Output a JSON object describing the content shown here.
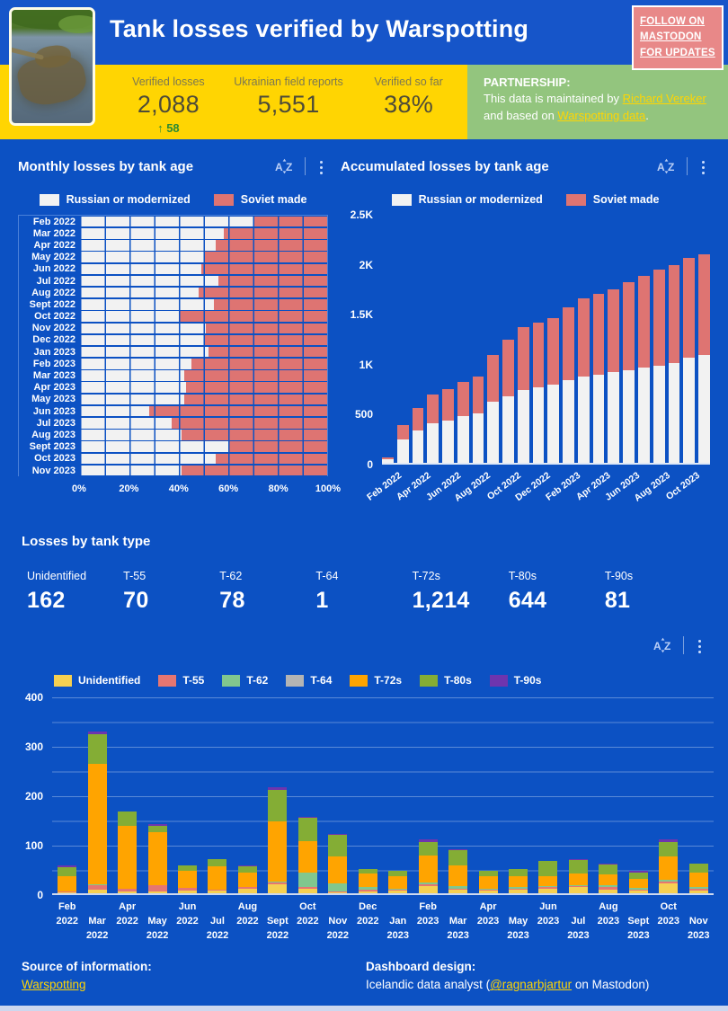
{
  "header": {
    "title": "Tank losses verified by Warspotting",
    "mastodon_button": {
      "lines": [
        "FOLLOW ON",
        "MASTODON",
        "FOR UPDATES"
      ]
    }
  },
  "stats": {
    "kpis": [
      {
        "label": "Verified losses",
        "value": "2,088",
        "delta_arrow": "↑",
        "delta": "58"
      },
      {
        "label": "Ukrainian field reports",
        "value": "5,551"
      },
      {
        "label": "Verified so far",
        "value": "38%"
      }
    ],
    "partnership": {
      "heading": "PARTNERSHIP:",
      "text_before": "This data is maintained by ",
      "link1": "Richard Vereker",
      "text_mid": " and based on ",
      "link2": "Warspotting data",
      "text_after": "."
    }
  },
  "tank_types": {
    "heading": "Losses by tank type",
    "kpis": [
      {
        "label": "Unidentified",
        "value": "162"
      },
      {
        "label": "T-55",
        "value": "70"
      },
      {
        "label": "T-62",
        "value": "78"
      },
      {
        "label": "T-64",
        "value": "1"
      },
      {
        "label": "T-72s",
        "value": "1,214"
      },
      {
        "label": "T-80s",
        "value": "644"
      },
      {
        "label": "T-90s",
        "value": "81"
      }
    ]
  },
  "footer": {
    "source_label": "Source of information:",
    "source_link": "Warspotting",
    "design_label": "Dashboard design:",
    "design_text_before": "Icelandic data analyst (",
    "design_link": "@ragnarbjartur",
    "design_text_after": " on Mastodon)"
  },
  "icons": [
    "sort-az-icon",
    "more-vert-menu-icon",
    "up-arrow-icon"
  ],
  "colors": {
    "header_blue": "#1655C9",
    "body_blue": "#0C51C3",
    "band_yellow": "#FFD502",
    "partner_green": "#93C57E",
    "mastodon_pink": "#E88888",
    "link_yellow": "#FFD502",
    "delta_green": "#2E8B33",
    "kpi_label_gray": "#7C7852",
    "kpi_value_gray": "#4E4B38",
    "bar_modern_white": "#F2F2F2",
    "bar_soviet_red": "#DE7472"
  },
  "chart_data": [
    {
      "id": "monthly_losses_by_tank_age",
      "type": "bar",
      "orientation": "horizontal_stacked_100pct",
      "title": "Monthly losses by tank age",
      "categories": [
        "Feb 2022",
        "Mar 2022",
        "Apr 2022",
        "May 2022",
        "Jun 2022",
        "Jul 2022",
        "Aug 2022",
        "Sept 2022",
        "Oct 2022",
        "Nov 2022",
        "Dec 2022",
        "Jan 2023",
        "Feb 2023",
        "Mar 2023",
        "Apr 2023",
        "May 2023",
        "Jun 2023",
        "Jul 2023",
        "Aug 2023",
        "Sept 2023",
        "Oct 2023",
        "Nov 2023"
      ],
      "series": [
        {
          "name": "Russian or modernized",
          "color": "#F2F2F2",
          "values": [
            70,
            58,
            55,
            50,
            49,
            56,
            48,
            54,
            40,
            51,
            50,
            52,
            45,
            42,
            43,
            42,
            28,
            37,
            41,
            60,
            55,
            41
          ]
        },
        {
          "name": "Soviet made",
          "color": "#DE7472",
          "values": [
            30,
            42,
            45,
            50,
            51,
            44,
            52,
            46,
            60,
            49,
            50,
            48,
            55,
            58,
            57,
            58,
            72,
            63,
            59,
            40,
            45,
            59
          ]
        }
      ],
      "x_ticks": [
        "0%",
        "20%",
        "40%",
        "60%",
        "80%",
        "100%"
      ],
      "xlim": [
        0,
        100
      ],
      "unit": "percent",
      "grid": "vertical 10% steps",
      "legend_position": "top-center"
    },
    {
      "id": "accumulated_losses_by_tank_age",
      "type": "bar",
      "orientation": "vertical_stacked",
      "title": "Accumulated losses by tank age",
      "categories": [
        "Feb 2022",
        "Mar 2022",
        "Apr 2022",
        "May 2022",
        "Jun 2022",
        "Jul 2022",
        "Aug 2022",
        "Sept 2022",
        "Oct 2022",
        "Nov 2022",
        "Dec 2022",
        "Jan 2023",
        "Feb 2023",
        "Mar 2023",
        "Apr 2023",
        "May 2023",
        "Jun 2023",
        "Jul 2023",
        "Aug 2023",
        "Sept 2023",
        "Oct 2023",
        "Nov 2023"
      ],
      "series": [
        {
          "name": "Russian or modernized",
          "color": "#F2F2F2",
          "values": [
            40,
            230,
            325,
            395,
            425,
            465,
            495,
            610,
            670,
            730,
            755,
            780,
            830,
            865,
            885,
            905,
            925,
            950,
            975,
            1000,
            1050,
            1075
          ]
        },
        {
          "name": "Soviet made",
          "color": "#DE7472",
          "values": [
            17,
            150,
            220,
            290,
            315,
            345,
            370,
            470,
            565,
            625,
            650,
            670,
            730,
            780,
            805,
            830,
            880,
            925,
            955,
            975,
            1000,
            1013
          ]
        }
      ],
      "ylim": [
        0,
        2500
      ],
      "y_tick_values": [
        0,
        500,
        1000,
        1500,
        2000,
        2500
      ],
      "y_tick_labels": [
        "0",
        "500",
        "1K",
        "1.5K",
        "2K",
        "2.5K"
      ],
      "x_tick_every": 2,
      "legend_position": "top-center"
    },
    {
      "id": "monthly_losses_by_tank_type",
      "type": "bar",
      "orientation": "vertical_stacked",
      "title": "Losses by tank type (monthly)",
      "categories": [
        "Feb 2022",
        "Mar 2022",
        "Apr 2022",
        "May 2022",
        "Jun 2022",
        "Jul 2022",
        "Aug 2022",
        "Sept 2022",
        "Oct 2022",
        "Nov 2022",
        "Dec 2022",
        "Jan 2023",
        "Feb 2023",
        "Mar 2023",
        "Apr 2023",
        "May 2023",
        "Jun 2023",
        "Jul 2023",
        "Aug 2023",
        "Sept 2023",
        "Oct 2023",
        "Nov 2023"
      ],
      "series": [
        {
          "name": "Unidentified",
          "color": "#F6D051",
          "values": [
            2,
            8,
            3,
            4,
            5,
            6,
            10,
            18,
            10,
            2,
            4,
            5,
            15,
            8,
            6,
            8,
            10,
            12,
            8,
            6,
            20,
            6
          ]
        },
        {
          "name": "T-55",
          "color": "#E57672",
          "values": [
            2,
            8,
            7,
            12,
            6,
            1,
            2,
            3,
            2,
            2,
            4,
            2,
            4,
            2,
            2,
            2,
            2,
            2,
            4,
            2,
            4,
            4
          ]
        },
        {
          "name": "T-62",
          "color": "#81C78E",
          "values": [
            0,
            2,
            0,
            0,
            0,
            0,
            0,
            2,
            30,
            16,
            5,
            3,
            2,
            4,
            2,
            2,
            3,
            2,
            4,
            3,
            3,
            2
          ]
        },
        {
          "name": "T-64",
          "color": "#B4B4B4",
          "values": [
            0,
            1,
            0,
            0,
            0,
            0,
            0,
            0,
            0,
            0,
            0,
            0,
            0,
            0,
            0,
            0,
            0,
            0,
            0,
            0,
            0,
            0
          ]
        },
        {
          "name": "T-72s",
          "color": "#FFA400",
          "values": [
            31,
            243,
            127,
            107,
            34,
            48,
            30,
            122,
            63,
            55,
            27,
            25,
            55,
            42,
            25,
            22,
            20,
            24,
            22,
            18,
            48,
            30
          ]
        },
        {
          "name": "T-80s",
          "color": "#84AD35",
          "values": [
            17,
            60,
            28,
            14,
            12,
            15,
            13,
            65,
            47,
            43,
            10,
            10,
            28,
            32,
            10,
            16,
            30,
            28,
            20,
            13,
            28,
            18
          ]
        },
        {
          "name": "T-90s",
          "color": "#6E35AE",
          "values": [
            5,
            5,
            0,
            3,
            0,
            0,
            2,
            5,
            3,
            2,
            0,
            0,
            6,
            2,
            0,
            0,
            0,
            2,
            2,
            3,
            7,
            0
          ]
        }
      ],
      "ylim": [
        0,
        400
      ],
      "y_tick_values": [
        0,
        100,
        200,
        300,
        400
      ],
      "y_tick_labels": [
        "0",
        "100",
        "200",
        "300",
        "400"
      ],
      "grid": "horizontal 50 steps",
      "legend_position": "top-left"
    }
  ]
}
